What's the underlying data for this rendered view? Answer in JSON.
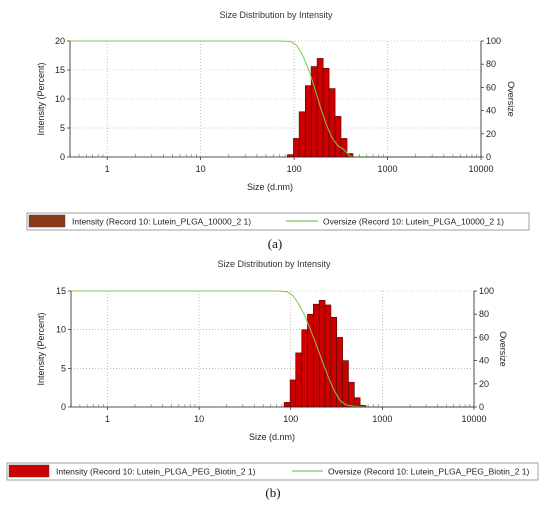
{
  "chart_data": [
    {
      "type": "bar",
      "panel_label": "(a)",
      "title": "Size Distribution by Intensity",
      "xlabel": "Size (d.nm)",
      "ylabel": "Intensity (Percent)",
      "y2label": "Oversize",
      "xscale": "log",
      "xlim": [
        0.4,
        10000
      ],
      "ylim": [
        0,
        20
      ],
      "y2lim": [
        0,
        100
      ],
      "xticks": [
        "1",
        "10",
        "100",
        "1000",
        "10000"
      ],
      "yticks": [
        "0",
        "5",
        "10",
        "15",
        "20"
      ],
      "y2ticks": [
        "0",
        "20",
        "40",
        "60",
        "80",
        "100"
      ],
      "grid": true,
      "legend_position": "bottom",
      "bars": {
        "name": "Intensity (Record 10: Lutein_PLGA_10000_2 1)",
        "color": "#cc0000",
        "x": [
          91.3,
          106,
          122,
          142,
          164,
          190,
          220,
          255,
          295,
          342,
          396
        ],
        "values": [
          0.4,
          3.2,
          7.8,
          12.3,
          15.6,
          17.0,
          15.3,
          11.8,
          7.0,
          3.2,
          0.6
        ]
      },
      "line": {
        "name": "Oversize (Record 10: Lutein_PLGA_10000_2 1)",
        "color": "#7ec850",
        "x": [
          0.4,
          70,
          91.3,
          106,
          122,
          142,
          164,
          190,
          220,
          255,
          295,
          342,
          396,
          430,
          10000
        ],
        "values": [
          100,
          100,
          99.6,
          96.4,
          88.6,
          76.3,
          60.7,
          43.7,
          28.4,
          16.6,
          9.6,
          6.4,
          0.6,
          0,
          0
        ]
      }
    },
    {
      "type": "bar",
      "panel_label": "(b)",
      "title": "Size Distribution by Intensity",
      "xlabel": "Size (d.nm)",
      "ylabel": "Intensity (Percent)",
      "y2label": "Oversize",
      "xscale": "log",
      "xlim": [
        0.4,
        10000
      ],
      "ylim": [
        0,
        15
      ],
      "y2lim": [
        0,
        100
      ],
      "xticks": [
        "1",
        "10",
        "100",
        "1000",
        "10000"
      ],
      "yticks": [
        "0",
        "5",
        "10",
        "15"
      ],
      "y2ticks": [
        "0",
        "20",
        "40",
        "60",
        "80",
        "100"
      ],
      "grid": true,
      "legend_position": "bottom",
      "bars": {
        "name": "Intensity (Record 10: Lutein_PLGA_PEG_Biotin_2 1)",
        "color": "#cc0000",
        "x": [
          91.3,
          106,
          122,
          142,
          164,
          190,
          220,
          255,
          295,
          342,
          396,
          459,
          531,
          615
        ],
        "values": [
          0.6,
          3.5,
          7.0,
          10.0,
          12.0,
          13.3,
          13.8,
          13.2,
          11.6,
          9.0,
          6.0,
          3.2,
          1.2,
          0.2
        ]
      },
      "line": {
        "name": "Oversize (Record 10: Lutein_PLGA_PEG_Biotin_2 1)",
        "color": "#7ec850",
        "x": [
          0.4,
          70,
          91.3,
          106,
          122,
          142,
          164,
          190,
          220,
          255,
          295,
          342,
          396,
          459,
          531,
          615,
          700,
          10000
        ],
        "values": [
          100,
          100,
          99.4,
          95.9,
          88.9,
          78.9,
          66.9,
          53.6,
          39.8,
          26.6,
          15.0,
          6.0,
          2.0,
          1.0,
          0.4,
          0.2,
          0,
          0
        ]
      }
    }
  ]
}
